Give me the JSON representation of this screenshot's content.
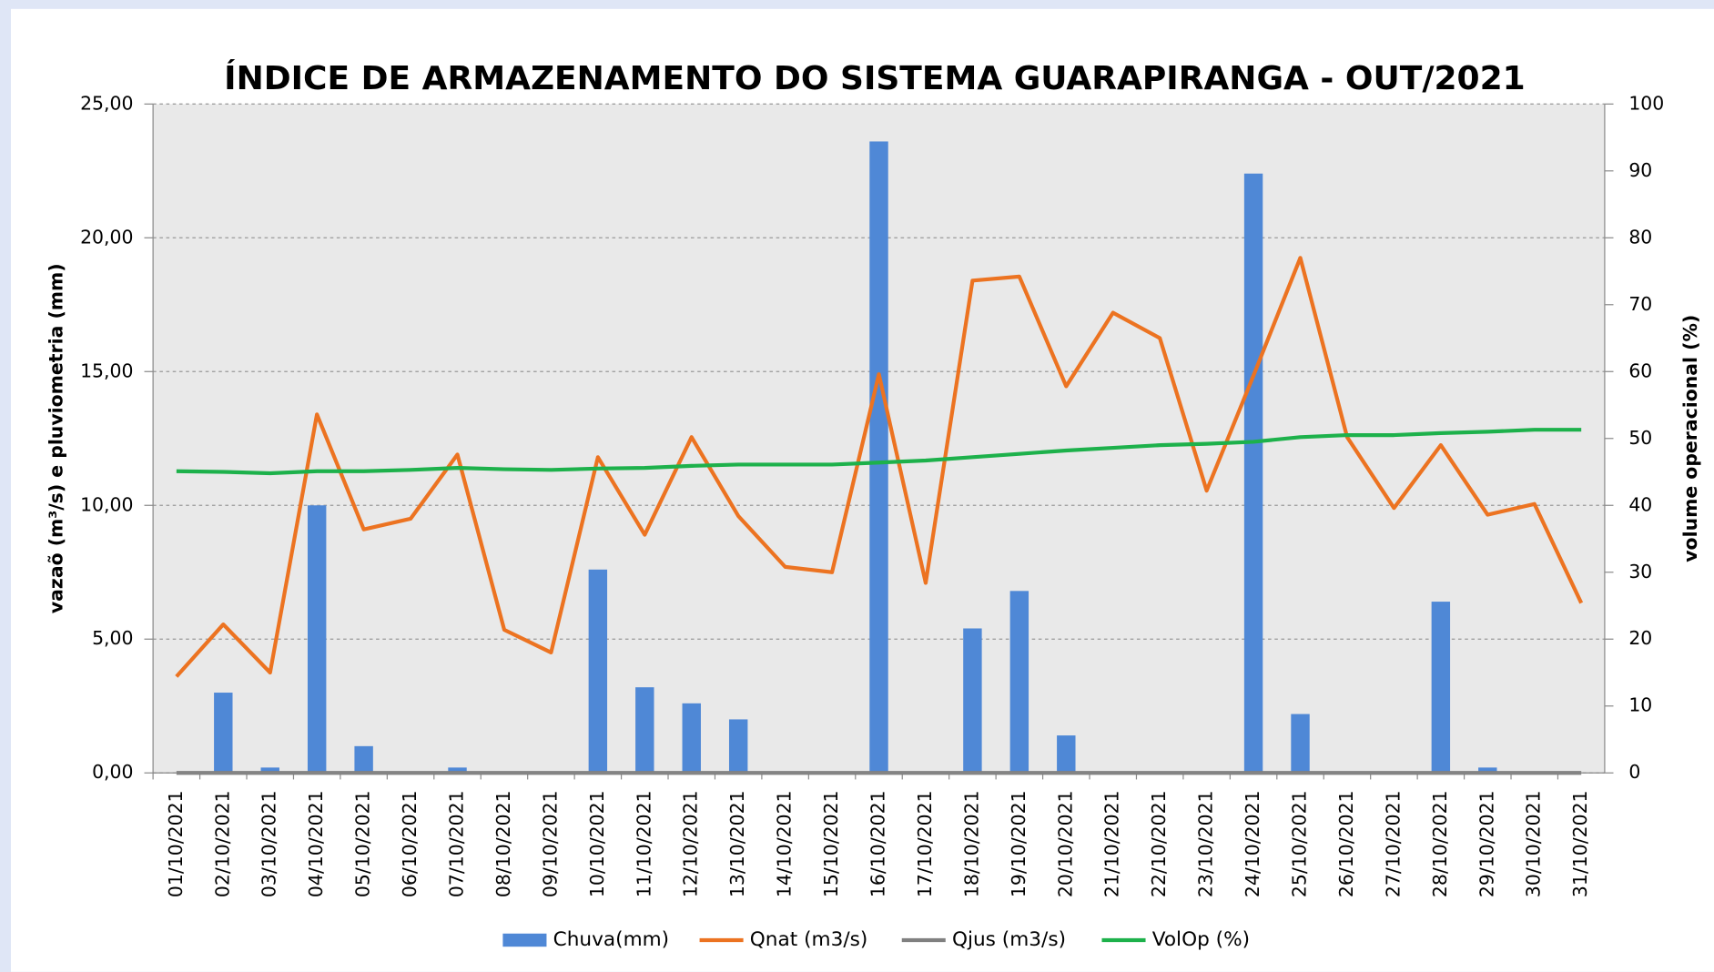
{
  "chart_data": {
    "type": "bar",
    "title": "ÍNDICE DE ARMAZENAMENTO DO SISTEMA GUARAPIRANGA - OUT/2021",
    "y_label": "vazaõ (m³/s) e pluviometria (mm)",
    "y2_label": "volume operacional (%)",
    "categories": [
      "01/10/2021",
      "02/10/2021",
      "03/10/2021",
      "04/10/2021",
      "05/10/2021",
      "06/10/2021",
      "07/10/2021",
      "08/10/2021",
      "09/10/2021",
      "10/10/2021",
      "11/10/2021",
      "12/10/2021",
      "13/10/2021",
      "14/10/2021",
      "15/10/2021",
      "16/10/2021",
      "17/10/2021",
      "18/10/2021",
      "19/10/2021",
      "20/10/2021",
      "21/10/2021",
      "22/10/2021",
      "23/10/2021",
      "24/10/2021",
      "25/10/2021",
      "26/10/2021",
      "27/10/2021",
      "28/10/2021",
      "29/10/2021",
      "30/10/2021",
      "31/10/2021"
    ],
    "series": [
      {
        "name": "Chuva(mm)",
        "type": "bar",
        "color": "#4f88d6",
        "values": [
          0,
          3.0,
          0.2,
          10.0,
          1.0,
          0,
          0.2,
          0,
          0,
          7.6,
          3.2,
          2.6,
          2.0,
          0,
          0,
          23.6,
          0,
          5.4,
          6.8,
          1.4,
          0,
          0,
          0,
          22.4,
          2.2,
          0,
          0,
          6.4,
          0.2,
          0,
          0
        ]
      },
      {
        "name": "Qnat (m3/s)",
        "type": "line",
        "color": "#ec7321",
        "values": [
          3.6,
          5.55,
          3.75,
          13.4,
          9.1,
          9.5,
          11.9,
          5.35,
          4.5,
          11.8,
          8.9,
          12.55,
          9.6,
          7.7,
          7.5,
          14.9,
          7.1,
          18.4,
          18.55,
          14.45,
          17.2,
          16.25,
          10.55,
          14.85,
          19.25,
          12.55,
          9.9,
          12.25,
          9.65,
          10.05,
          6.35
        ]
      },
      {
        "name": "Qjus (m3/s)",
        "type": "line",
        "color": "#808080",
        "values": [
          0,
          0,
          0,
          0,
          0,
          0,
          0,
          0,
          0,
          0,
          0,
          0,
          0,
          0,
          0,
          0,
          0,
          0,
          0,
          0,
          0,
          0,
          0,
          0,
          0,
          0,
          0,
          0,
          0,
          0,
          0
        ]
      },
      {
        "name": "VolOp (%)",
        "type": "line",
        "axis": "y2",
        "color": "#1db14b",
        "values": [
          45.1,
          45.0,
          44.8,
          45.1,
          45.1,
          45.3,
          45.6,
          45.4,
          45.3,
          45.5,
          45.6,
          45.9,
          46.1,
          46.1,
          46.1,
          46.4,
          46.7,
          47.2,
          47.7,
          48.2,
          48.6,
          49.0,
          49.2,
          49.5,
          50.2,
          50.5,
          50.5,
          50.8,
          51.0,
          51.3,
          51.3
        ]
      }
    ],
    "ylim": [
      0,
      25
    ],
    "yticks": [
      {
        "value": 0,
        "label": "0,00"
      },
      {
        "value": 5,
        "label": "5,00"
      },
      {
        "value": 10,
        "label": "10,00"
      },
      {
        "value": 15,
        "label": "15,00"
      },
      {
        "value": 20,
        "label": "20,00"
      },
      {
        "value": 25,
        "label": "25,00"
      }
    ],
    "y2lim": [
      0,
      100
    ],
    "y2ticks": [
      0,
      10,
      20,
      30,
      40,
      50,
      60,
      70,
      80,
      90,
      100
    ],
    "grid": true,
    "legend": "bottom"
  }
}
